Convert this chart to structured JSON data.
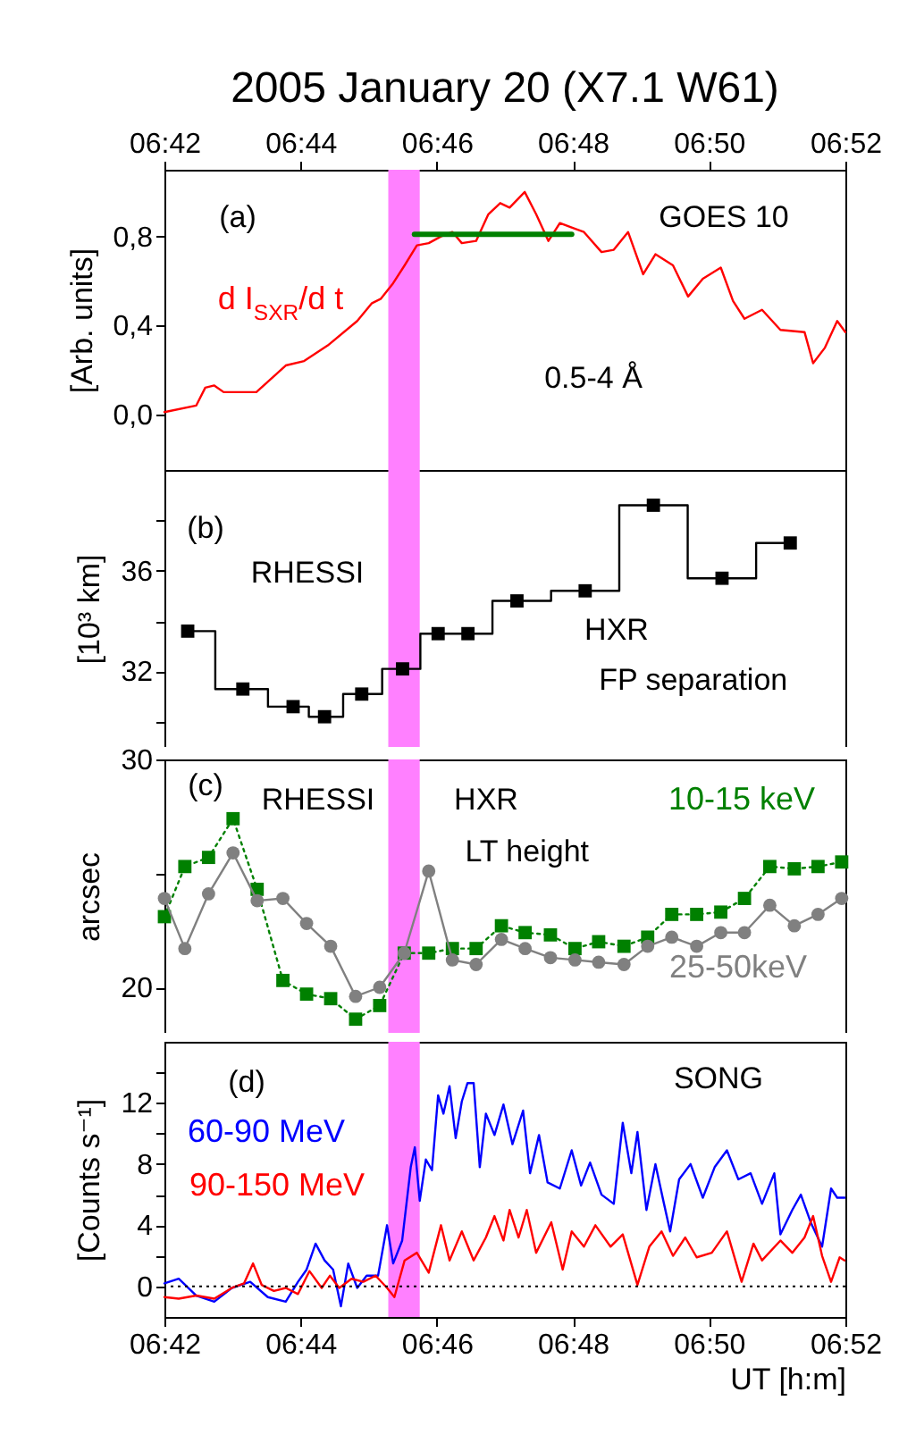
{
  "chart_data": [
    {
      "type": "line",
      "title": "2005 January 20 (X7.1 W61)",
      "ylabel": "[Arb. units]",
      "xlim": [
        6.7,
        6.8667
      ],
      "xticks": [
        {
          "value": 6.7,
          "label": null
        },
        {
          "value": 6.7333,
          "label": null
        },
        {
          "value": 6.7667,
          "label": null
        },
        {
          "value": 6.8,
          "label": null
        },
        {
          "value": 6.8333,
          "label": null
        },
        {
          "value": 6.8667,
          "label": null
        }
      ],
      "x2lim": [
        6.7,
        6.8667
      ],
      "x2ticks": [
        {
          "value": 6.7,
          "label": "06:42"
        },
        {
          "value": 6.7333,
          "label": "06:44"
        },
        {
          "value": 6.7667,
          "label": "06:46"
        },
        {
          "value": 6.8,
          "label": "06:48"
        },
        {
          "value": 6.8333,
          "label": "06:50"
        },
        {
          "value": 6.8667,
          "label": "06:52"
        }
      ],
      "ylim": [
        -0.25,
        1.1
      ],
      "yticks": [
        {
          "value": 0,
          "label": "0,0"
        },
        {
          "value": 0.4,
          "label": "0,4"
        },
        {
          "value": 0.8,
          "label": "0,8"
        }
      ],
      "tick_labels": "y",
      "annotations": [
        "(a)",
        "GOES 10",
        "0.5-4 Å"
      ],
      "bands": [
        {
          "axis": "x",
          "from": 6.7548,
          "to": 6.7625,
          "color": "#ff80ff"
        }
      ],
      "series": [
        {
          "name": "d I$_{SXR}$/d t",
          "color": "#ff0000",
          "x": [
            6.7,
            6.7078,
            6.71,
            6.7122,
            6.7145,
            6.7225,
            6.7297,
            6.7342,
            6.74,
            6.7472,
            6.7508,
            6.753,
            6.756,
            6.7588,
            6.7618,
            6.7647,
            6.7677,
            6.7705,
            6.7728,
            6.7763,
            6.7793,
            6.7822,
            6.7845,
            6.7882,
            6.791,
            6.794,
            6.7968,
            6.7997,
            6.8027,
            6.807,
            6.81,
            6.8135,
            6.8172,
            6.8202,
            6.8245,
            6.8282,
            6.8318,
            6.8362,
            6.8392,
            6.842,
            6.8463,
            6.8508,
            6.8567,
            6.8588,
            6.8617,
            6.8647,
            6.8667
          ],
          "values": [
            0.01,
            0.04,
            0.12,
            0.13,
            0.1,
            0.1,
            0.22,
            0.24,
            0.31,
            0.42,
            0.5,
            0.52,
            0.59,
            0.67,
            0.76,
            0.77,
            0.8,
            0.82,
            0.77,
            0.78,
            0.9,
            0.95,
            0.93,
            1.0,
            0.9,
            0.78,
            0.86,
            0.84,
            0.82,
            0.73,
            0.74,
            0.82,
            0.63,
            0.72,
            0.67,
            0.53,
            0.61,
            0.66,
            0.51,
            0.43,
            0.47,
            0.38,
            0.37,
            0.23,
            0.3,
            0.42,
            0.37
          ]
        },
        {
          "type": "line",
          "color": "#008000",
          "x": [
            6.7612,
            6.7997
          ],
          "values": [
            0.81,
            0.81
          ]
        }
      ]
    },
    {
      "type": "step",
      "ylabel": "[10³ km]",
      "xlim": [
        6.7,
        6.8667
      ],
      "xticks": [
        {
          "value": 6.7,
          "label": null
        },
        {
          "value": 6.7333,
          "label": null
        },
        {
          "value": 6.7667,
          "label": null
        },
        {
          "value": 6.8,
          "label": null
        },
        {
          "value": 6.8333,
          "label": null
        },
        {
          "value": 6.8667,
          "label": null
        }
      ],
      "ylim": [
        29,
        40
      ],
      "yticks": [
        {
          "value": 30,
          "label": null
        },
        32,
        {
          "value": 34,
          "label": null
        },
        36,
        {
          "value": 38,
          "label": null
        }
      ],
      "tick_labels": "y",
      "annotations": [
        "(b)",
        "RHESSI",
        "HXR",
        "FP separation"
      ],
      "bands": [
        {
          "axis": "x",
          "from": 6.7548,
          "to": 6.7625,
          "color": "#ff80ff"
        }
      ],
      "series": [
        {
          "color": "#000000",
          "marker": "square",
          "x": [
            6.7057,
            6.7192,
            6.7315,
            6.7392,
            6.7483,
            6.7583,
            6.767,
            6.7743,
            6.7863,
            6.803,
            6.8197,
            6.8365,
            6.8532
          ],
          "values": [
            33.6,
            31.3,
            30.6,
            30.2,
            31.1,
            32.1,
            33.5,
            33.5,
            34.8,
            35.2,
            38.6,
            35.7,
            37.1
          ]
        }
      ]
    },
    {
      "type": "line",
      "ylabel": "arcsec",
      "xlim": [
        6.7,
        6.8667
      ],
      "xticks": [
        {
          "value": 6.7,
          "label": null
        },
        {
          "value": 6.7333,
          "label": null
        },
        {
          "value": 6.7667,
          "label": null
        },
        {
          "value": 6.8,
          "label": null
        },
        {
          "value": 6.8333,
          "label": null
        },
        {
          "value": 6.8667,
          "label": null
        }
      ],
      "ylim": [
        18,
        30
      ],
      "yticks": [
        20,
        {
          "value": 25,
          "label": null
        },
        30
      ],
      "tick_labels": "y",
      "annotations": [
        "(c)",
        "RHESSI",
        "HXR",
        "LT height"
      ],
      "bands": [
        {
          "axis": "x",
          "from": 6.7548,
          "to": 6.7625,
          "color": "#ff80ff"
        }
      ],
      "x": [
        6.7,
        6.705,
        6.7108,
        6.7168,
        6.7227,
        6.729,
        6.7348,
        6.7407,
        6.7468,
        6.7527,
        6.7587,
        6.7647,
        6.7705,
        6.7763,
        6.7825,
        6.7883,
        6.7945,
        6.8005,
        6.8063,
        6.8125,
        6.8183,
        6.8242,
        6.8303,
        6.8362,
        6.842,
        6.8482,
        6.8542,
        6.86,
        6.8658
      ],
      "series": [
        {
          "name": "10-15 keV",
          "color": "#008000",
          "marker": "square",
          "line_style": "dotted",
          "values": [
            23.1,
            25.3,
            25.7,
            27.4,
            24.3,
            20.3,
            19.7,
            19.5,
            18.6,
            19.2,
            21.5,
            21.5,
            21.7,
            21.7,
            22.7,
            22.4,
            22.3,
            21.7,
            22.0,
            21.8,
            22.2,
            23.2,
            23.2,
            23.3,
            23.9,
            25.3,
            25.2,
            25.3,
            25.5
          ]
        },
        {
          "name": "25-50keV",
          "color": "#808080",
          "marker": "circle",
          "values": [
            23.9,
            21.7,
            24.1,
            25.9,
            23.8,
            23.9,
            22.8,
            21.8,
            19.6,
            20.0,
            21.5,
            25.1,
            21.2,
            21.0,
            22.1,
            21.7,
            21.3,
            21.2,
            21.1,
            21.0,
            21.8,
            22.2,
            21.8,
            22.4,
            22.4,
            23.6,
            22.7,
            23.2,
            23.9
          ]
        }
      ]
    },
    {
      "type": "line",
      "ylabel": "[Counts s⁻¹]",
      "xlabel": "UT [h:m]",
      "xlim": [
        6.7,
        6.8667
      ],
      "xticks": [
        {
          "value": 6.7,
          "label": "06:42"
        },
        {
          "value": 6.7333,
          "label": "06:44"
        },
        {
          "value": 6.7667,
          "label": "06:46"
        },
        {
          "value": 6.8,
          "label": "06:48"
        },
        {
          "value": 6.8333,
          "label": "06:50"
        },
        {
          "value": 6.8667,
          "label": "06:52"
        }
      ],
      "ylim": [
        -2,
        16
      ],
      "yticks": [
        0,
        {
          "value": 2,
          "label": null
        },
        4,
        {
          "value": 6,
          "label": null
        },
        8,
        {
          "value": 10,
          "label": null
        },
        12,
        {
          "value": 14,
          "label": null
        }
      ],
      "annotations": [
        "(d)",
        "SONG"
      ],
      "bands": [
        {
          "axis": "x",
          "from": 6.7548,
          "to": 6.7625,
          "color": "#ff80ff"
        }
      ],
      "ref_lines": [
        {
          "axis": "y",
          "value": 0,
          "color": "#000000",
          "line_style": "dotted"
        }
      ],
      "series": [
        {
          "name": "60-90 MeV",
          "color": "#0000ff",
          "x": [
            6.7,
            6.7035,
            6.7078,
            6.7122,
            6.7165,
            6.721,
            6.7253,
            6.7297,
            6.7327,
            6.7348,
            6.737,
            6.7392,
            6.7413,
            6.7432,
            6.745,
            6.7472,
            6.7495,
            6.7523,
            6.7545,
            6.756,
            6.7582,
            6.7603,
            6.7613,
            6.7625,
            6.764,
            6.7655,
            6.767,
            6.7683,
            6.7698,
            6.7713,
            6.7728,
            6.7742,
            6.7757,
            6.7772,
            6.7787,
            6.7808,
            6.783,
            6.7852,
            6.7878,
            6.7895,
            6.7917,
            6.7938,
            6.7968,
            6.7997,
            6.802,
            6.8042,
            6.807,
            6.81,
            6.8122,
            6.8143,
            6.8158,
            6.818,
            6.8202,
            6.8223,
            6.8238,
            6.826,
            6.8288,
            6.8318,
            6.8347,
            6.8377,
            6.8405,
            6.8435,
            6.8463,
            6.8493,
            6.8508,
            6.8537,
            6.8558,
            6.8582,
            6.861,
            6.8632,
            6.8647,
            6.8665
          ],
          "values": [
            0.2,
            0.5,
            -0.6,
            -1.0,
            -0.1,
            0.3,
            -0.7,
            -1.0,
            0.3,
            1.1,
            2.8,
            1.7,
            1.1,
            -1.3,
            1.5,
            -0.1,
            0.7,
            0.7,
            4.0,
            1.5,
            3.0,
            7.8,
            9.1,
            5.6,
            8.3,
            7.6,
            12.5,
            11.3,
            13.1,
            9.7,
            12.1,
            13.3,
            13.3,
            7.8,
            11.3,
            9.9,
            11.9,
            9.3,
            11.5,
            7.4,
            9.9,
            6.8,
            6.4,
            8.9,
            6.6,
            8.1,
            6.0,
            5.4,
            10.7,
            7.4,
            10.1,
            5.0,
            8.0,
            5.4,
            3.6,
            7.0,
            8.0,
            5.8,
            7.8,
            8.9,
            7.0,
            7.4,
            5.4,
            7.4,
            3.4,
            5.0,
            6.0,
            4.2,
            2.6,
            6.4,
            5.8,
            5.8
          ]
        },
        {
          "name": "90-150 MeV",
          "color": "#ff0000",
          "x": [
            6.7,
            6.7035,
            6.7078,
            6.7122,
            6.7165,
            6.7195,
            6.7217,
            6.7238,
            6.7268,
            6.7297,
            6.7327,
            6.7355,
            6.7385,
            6.7405,
            6.7428,
            6.7458,
            6.7487,
            6.7517,
            6.7545,
            6.7563,
            6.7588,
            6.7618,
            6.7647,
            6.7677,
            6.7698,
            6.7728,
            6.7757,
            6.7787,
            6.7808,
            6.783,
            6.7845,
            6.7867,
            6.7887,
            6.791,
            6.7947,
            6.7975,
            6.7997,
            6.8027,
            6.8055,
            6.8092,
            6.8122,
            6.8158,
            6.8187,
            6.8217,
            6.8245,
            6.8275,
            6.8303,
            6.834,
            6.8377,
            6.8413,
            6.8442,
            6.8463,
            6.8508,
            6.8537,
            6.8567,
            6.8588,
            6.861,
            6.8632,
            6.8653,
            6.8665
          ],
          "values": [
            -0.7,
            -0.8,
            -0.6,
            -0.8,
            -0.1,
            0.2,
            1.5,
            0.1,
            -0.3,
            -0.1,
            -0.5,
            1.0,
            -0.1,
            0.7,
            -0.1,
            0.5,
            0.3,
            0.7,
            -0.1,
            -0.7,
            1.7,
            2.2,
            0.9,
            4.0,
            1.7,
            3.6,
            1.7,
            3.2,
            4.6,
            3.0,
            5.0,
            3.2,
            5.0,
            2.2,
            4.2,
            1.1,
            3.6,
            2.6,
            4.0,
            2.6,
            3.4,
            0.1,
            2.6,
            3.6,
            2.0,
            3.2,
            1.9,
            2.2,
            3.6,
            0.3,
            2.8,
            1.7,
            3.0,
            2.2,
            3.2,
            4.6,
            2.0,
            0.3,
            1.9,
            1.7
          ]
        }
      ]
    }
  ]
}
